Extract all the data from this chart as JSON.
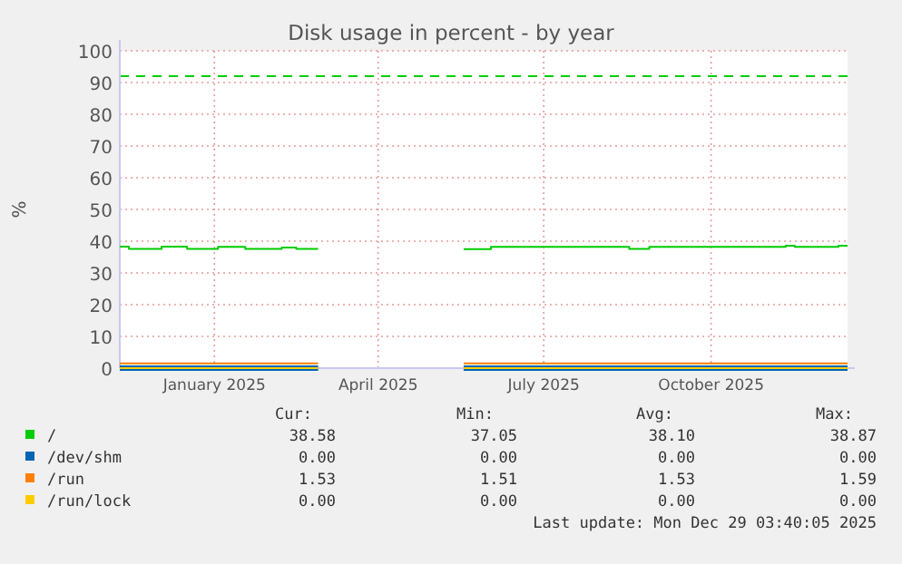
{
  "chart_data": {
    "type": "step",
    "title": "Disk usage in percent - by year",
    "ylabel": "%",
    "xlim": [
      "2024-11-24",
      "2025-12-29"
    ],
    "ylim": [
      0,
      100
    ],
    "xticks": [
      {
        "value": "2025-01-15",
        "label": "January 2025"
      },
      {
        "value": "2025-04-15",
        "label": "April 2025"
      },
      {
        "value": "2025-07-15",
        "label": "July 2025"
      },
      {
        "value": "2025-10-15",
        "label": "October 2025"
      }
    ],
    "yticks": [
      0,
      10,
      20,
      30,
      40,
      50,
      60,
      70,
      80,
      90,
      100
    ],
    "grid": true,
    "legend": "bottom",
    "ref_lines": [
      {
        "axis": "y",
        "value": 92,
        "color": "#00cc00",
        "line_style": "dashed"
      }
    ],
    "series": [
      {
        "name": "/",
        "color": "#00cc00",
        "x": [
          "2024-11-24",
          "2024-11-29",
          "2024-12-17",
          "2024-12-31",
          "2025-01-17",
          "2025-02-01",
          "2025-02-21",
          "2025-03-01",
          "2025-03-13",
          "2025-03-14",
          "2025-06-01",
          "2025-06-16",
          "2025-08-31",
          "2025-09-11",
          "2025-11-25",
          "2025-11-30",
          "2025-12-24",
          "2025-12-29"
        ],
        "values": [
          38.3,
          37.6,
          38.3,
          37.6,
          38.2,
          37.6,
          38.0,
          37.6,
          37.6,
          null,
          37.5,
          38.2,
          37.6,
          38.2,
          38.6,
          38.2,
          38.6,
          38.6
        ]
      },
      {
        "name": "/dev/shm",
        "color": "#0066b3",
        "x": [
          "2024-11-24",
          "2025-03-13",
          "2025-03-14",
          "2025-06-01",
          "2025-12-29"
        ],
        "values": [
          0,
          0,
          null,
          0,
          0
        ]
      },
      {
        "name": "/run",
        "color": "#ff8000",
        "x": [
          "2024-11-24",
          "2025-03-13",
          "2025-03-14",
          "2025-06-01",
          "2025-12-29"
        ],
        "values": [
          1.5,
          1.5,
          null,
          1.5,
          1.5
        ]
      },
      {
        "name": "/run/lock",
        "color": "#ffcc00",
        "x": [
          "2024-11-24",
          "2025-03-13",
          "2025-03-14",
          "2025-06-01",
          "2025-12-29"
        ],
        "values": [
          0,
          0,
          null,
          0,
          0
        ]
      }
    ],
    "annotations": [
      "Cur:",
      "Min:",
      "Avg:",
      "Max:",
      "38.58",
      "37.05",
      "38.10",
      "38.87",
      "0.00",
      "0.00",
      "0.00",
      "0.00",
      "1.53",
      "1.51",
      "1.53",
      "1.59",
      "0.00",
      "0.00",
      "0.00",
      "0.00",
      "Last update: Mon Dec 29 03:40:05 2025"
    ]
  }
}
